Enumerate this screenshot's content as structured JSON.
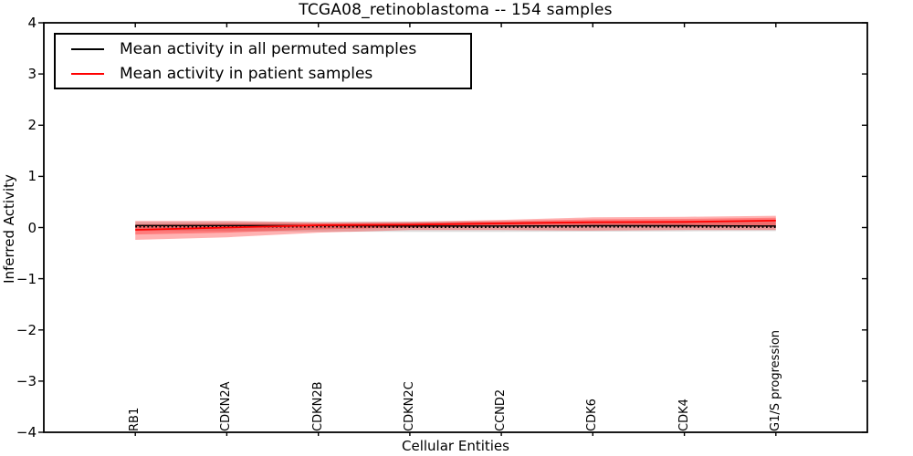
{
  "title": "TCGA08_retinoblastoma -- 154 samples",
  "axes": {
    "xlabel": "Cellular Entities",
    "ylabel": "Inferred Activity"
  },
  "legend": {
    "position": "upper left",
    "entries": [
      {
        "label": "Mean activity in all permuted samples",
        "color": "#000000"
      },
      {
        "label": "Mean activity in patient samples",
        "color": "#ff0000"
      }
    ]
  },
  "chart_data": {
    "type": "line",
    "title": "TCGA08_retinoblastoma -- 154 samples",
    "xlabel": "Cellular Entities",
    "ylabel": "Inferred Activity",
    "ylim": [
      -4,
      4
    ],
    "grid": false,
    "legend_position": "upper left",
    "categories": [
      "RB1",
      "CDKN2A",
      "CDKN2B",
      "CDKN2C",
      "CCND2",
      "CDK6",
      "CDK4",
      "G1/S progression"
    ],
    "y_ticks": [
      {
        "value": 4,
        "label": "4"
      },
      {
        "value": 3,
        "label": "3"
      },
      {
        "value": 2,
        "label": "2"
      },
      {
        "value": 1,
        "label": "1"
      },
      {
        "value": 0,
        "label": "0"
      },
      {
        "value": -1,
        "label": "−1"
      },
      {
        "value": -2,
        "label": "−2"
      },
      {
        "value": -3,
        "label": "−3"
      },
      {
        "value": -4,
        "label": "−4"
      }
    ],
    "series": [
      {
        "name": "Mean activity in all permuted samples",
        "color": "#000000",
        "style": "solid-with-dotted-overlay",
        "values": [
          0.04,
          0.04,
          0.04,
          0.03,
          0.03,
          0.035,
          0.035,
          0.03
        ]
      },
      {
        "name": "Mean activity in patient samples",
        "color": "#ff0000",
        "style": "solid",
        "values": [
          -0.045,
          0.0,
          0.045,
          0.055,
          0.08,
          0.105,
          0.11,
          0.135
        ]
      }
    ],
    "bands": [
      {
        "name": "permuted-samples-std-band",
        "color": "#000000",
        "opacity": 0.13,
        "upper": [
          0.11,
          0.115,
          0.115,
          0.12,
          0.12,
          0.115,
          0.11,
          0.11
        ],
        "lower": [
          -0.065,
          -0.07,
          -0.08,
          -0.085,
          -0.085,
          -0.08,
          -0.075,
          -0.07
        ]
      },
      {
        "name": "patient-samples-std-outer-band",
        "color": "#ff0000",
        "opacity": 0.3,
        "upper": [
          0.13,
          0.13,
          0.1,
          0.11,
          0.15,
          0.2,
          0.21,
          0.23
        ],
        "lower": [
          -0.24,
          -0.19,
          -0.1,
          -0.05,
          -0.05,
          -0.06,
          -0.05,
          -0.05
        ]
      },
      {
        "name": "patient-samples-std-inner-band",
        "color": "#ff0000",
        "opacity": 0.3,
        "upper": [
          0.06,
          0.08,
          0.08,
          0.09,
          0.125,
          0.16,
          0.17,
          0.19
        ],
        "lower": [
          -0.135,
          -0.1,
          -0.035,
          0.0,
          0.02,
          0.03,
          0.02,
          0.01
        ]
      }
    ]
  }
}
